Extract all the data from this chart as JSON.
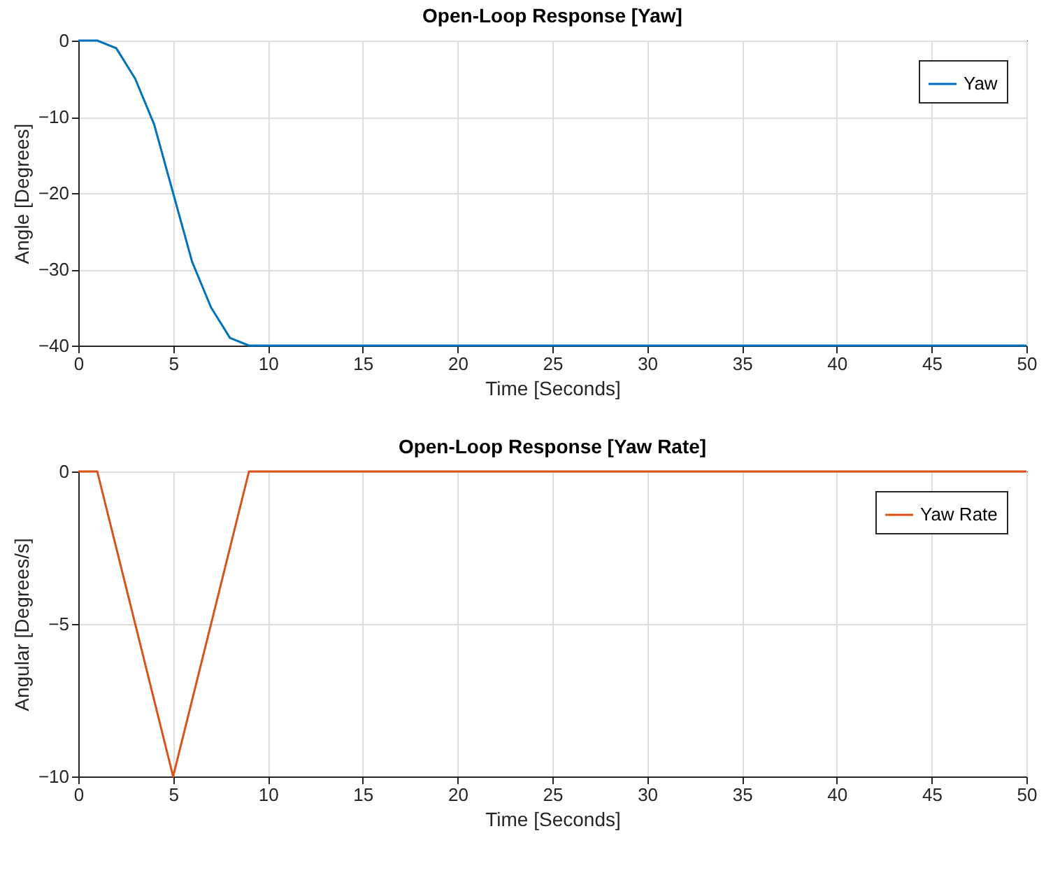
{
  "chart_data": [
    {
      "type": "line",
      "title": "Open-Loop Response [Yaw]",
      "xlabel": "Time [Seconds]",
      "ylabel": "Angle [Degrees]",
      "x": [
        0,
        1,
        2,
        3,
        4,
        5,
        6,
        7,
        8,
        9,
        50
      ],
      "series": [
        {
          "name": "Yaw",
          "color": "#0072bd",
          "values": [
            0,
            0,
            -1,
            -5,
            -11,
            -20,
            -29,
            -35,
            -39,
            -40,
            -40
          ]
        }
      ],
      "xlim": [
        0,
        50
      ],
      "xticks": [
        0,
        5,
        10,
        15,
        20,
        25,
        30,
        35,
        40,
        45,
        50
      ],
      "ylim": [
        -40,
        0
      ],
      "yticks": [
        -40,
        -30,
        -20,
        -10,
        0
      ],
      "grid": true,
      "legend": "top right"
    },
    {
      "type": "line",
      "title": "Open-Loop Response [Yaw Rate]",
      "xlabel": "Time [Seconds]",
      "ylabel": "Angular [Degrees/s]",
      "x": [
        0,
        1,
        5,
        9,
        50
      ],
      "series": [
        {
          "name": "Yaw Rate",
          "color": "#d95319",
          "values": [
            0,
            0,
            -10,
            0,
            0
          ]
        }
      ],
      "xlim": [
        0,
        50
      ],
      "xticks": [
        0,
        5,
        10,
        15,
        20,
        25,
        30,
        35,
        40,
        45,
        50
      ],
      "ylim": [
        -10,
        0
      ],
      "yticks": [
        -10,
        -5,
        0
      ],
      "grid": true,
      "legend": "top right"
    }
  ]
}
